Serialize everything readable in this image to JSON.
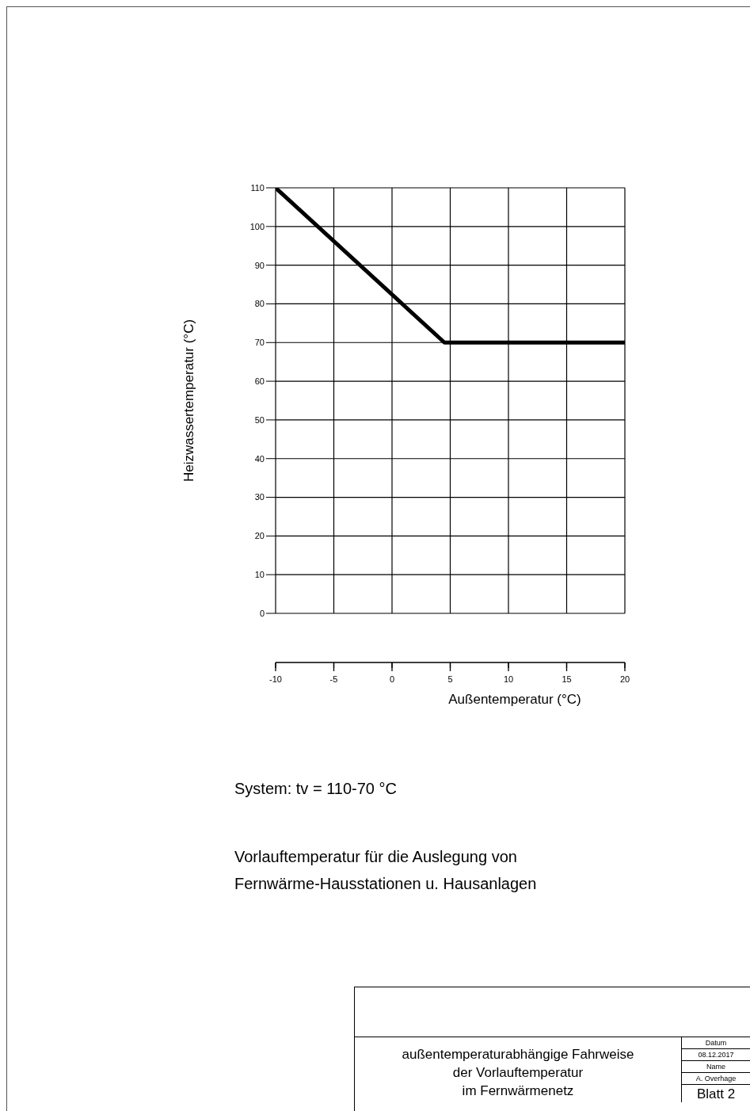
{
  "chart_data": {
    "type": "line",
    "xlabel": "Außentemperatur (°C)",
    "ylabel": "Heizwassertemperatur (°C)",
    "x": [
      -10,
      4.5,
      20
    ],
    "series": [
      {
        "color": "#000000",
        "values": [
          110,
          70,
          70
        ]
      }
    ],
    "xlim": [
      -10,
      20
    ],
    "xticks": [
      -10,
      -5,
      0,
      5,
      10,
      15,
      20
    ],
    "ylim": [
      0,
      110
    ],
    "yticks": [
      0,
      10,
      20,
      30,
      40,
      50,
      60,
      70,
      80,
      90,
      100,
      110
    ],
    "grid": true,
    "marker": "none",
    "line_style": "solid",
    "legend": false,
    "annotations": [
      "System: tv = 110-70 °C",
      "Vorlauftemperatur für die Auslegung von Fernwärme-Hausstationen u. Hausanlagen",
      "außentemperaturabhängige Fahrweise\nder Vorlauftemperatur\nim Fernwärmenetz",
      "Datum",
      "08.12.2017",
      "Name",
      "A. Overhage",
      "Blatt 2"
    ]
  }
}
